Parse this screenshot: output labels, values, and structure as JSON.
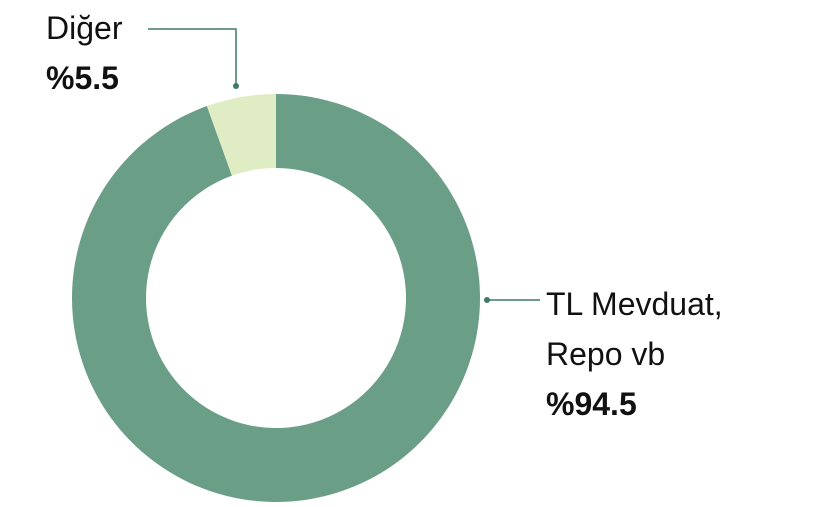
{
  "chart_data": {
    "type": "donut",
    "categories": [
      "TL Mevduat, Repo vb",
      "Diğer"
    ],
    "values": [
      94.5,
      5.5
    ],
    "value_labels": [
      "%94.5",
      "%5.5"
    ],
    "colors": [
      "#6b9e87",
      "#dfecc4"
    ]
  }
}
